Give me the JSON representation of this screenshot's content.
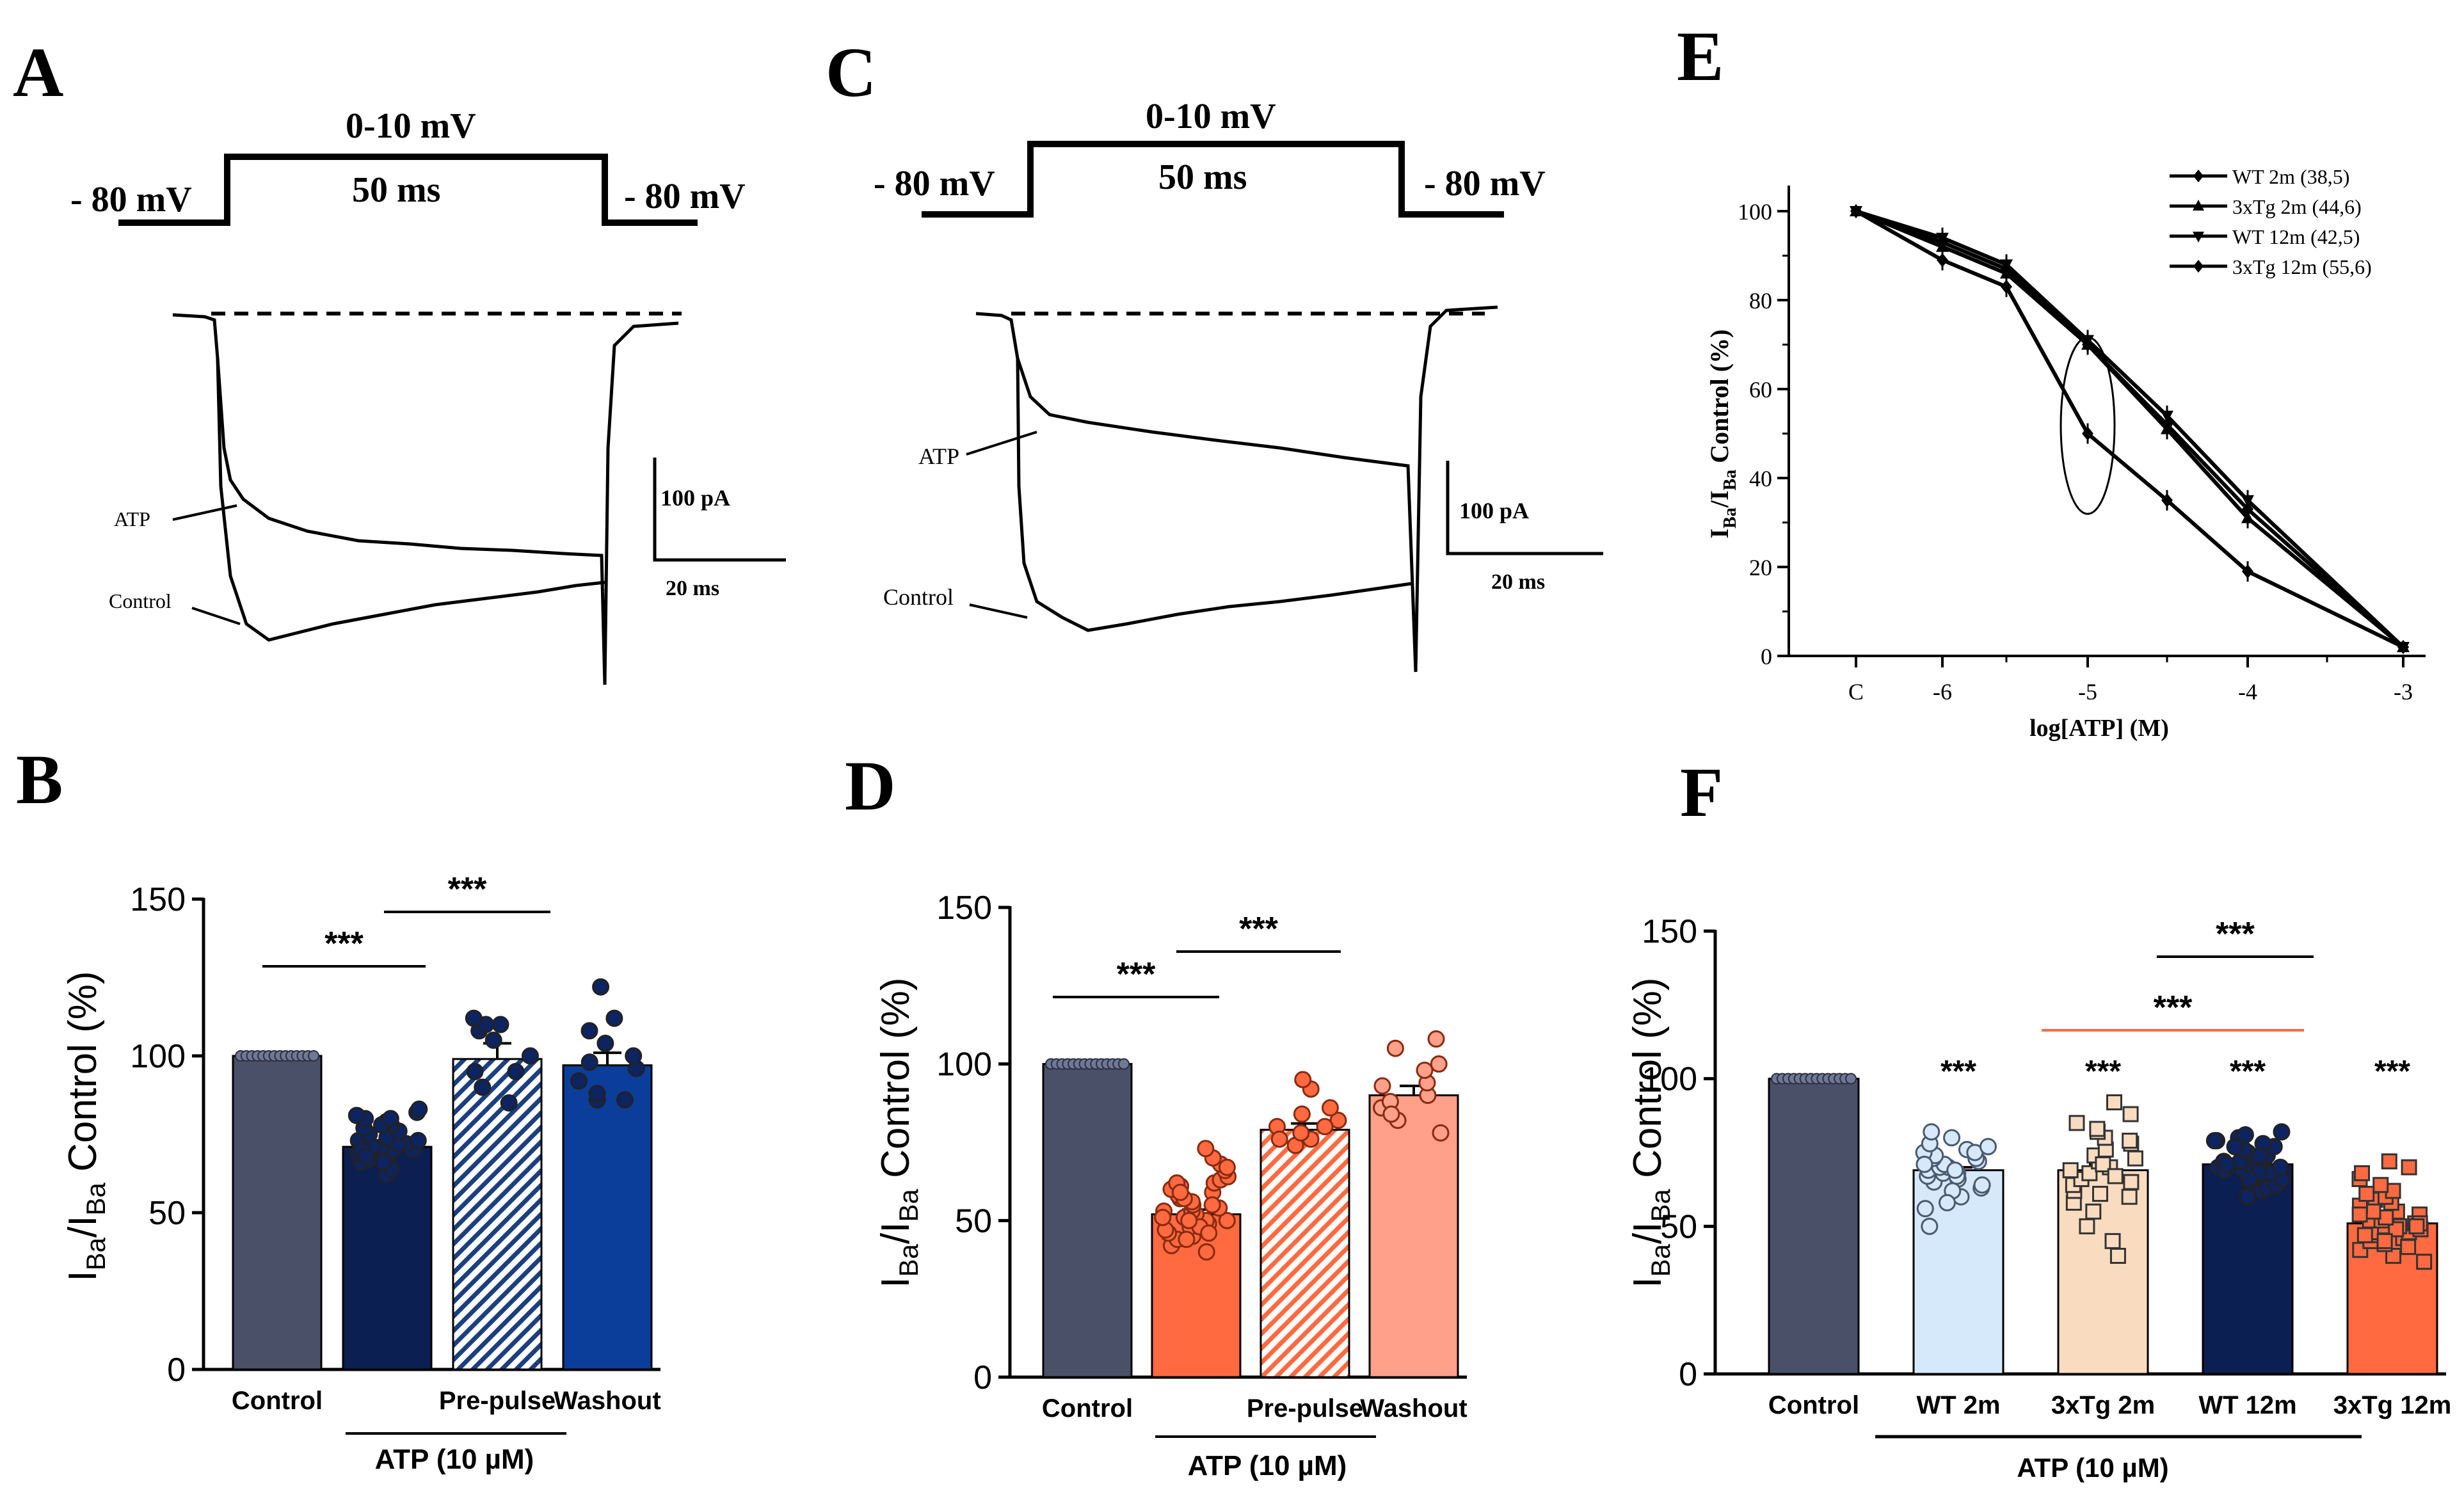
{
  "panels": {
    "A": "A",
    "B": "B",
    "C": "C",
    "D": "D",
    "E": "E",
    "F": "F"
  },
  "colors": {
    "ink": "#000000",
    "control": "#4a5068",
    "b_atp": "#0b1f52",
    "b_pre_fg": "#1b3f80",
    "b_wash": "#0a3e9a",
    "d_atp": "#ff6a40",
    "d_pre": "#ff6a40",
    "d_wash": "#ffa08a",
    "f_wt2": "#d6e9fb",
    "f_tg2": "#f9dcc0",
    "f_wt12": "#0b1f52",
    "f_tg12": "#ff6a40",
    "f_redline": "#ff6a40"
  },
  "protocol": {
    "hold_left": "- 80 mV",
    "step_v": "0-10 mV",
    "duration": "50 ms",
    "hold_right": "- 80 mV"
  },
  "traces": {
    "atp_label": "ATP",
    "control_label": "Control",
    "scale_current": "100 pA",
    "scale_time": "20 ms"
  },
  "chart_data": [
    {
      "panel": "B",
      "type": "bar",
      "title": "",
      "ylabel_main": "I",
      "ylabel_sub1": "Ba",
      "ylabel_sub2": "Ba",
      "ylabel_sep": "/I",
      "ylabel_tail": "Control (%)",
      "ylim": [
        0,
        150
      ],
      "yticks": [
        "0",
        "50",
        "100",
        "150"
      ],
      "categories": [
        "Control",
        "",
        "Pre-pulse",
        "Washout"
      ],
      "values": [
        100,
        71,
        99,
        97
      ],
      "errors": [
        0,
        2,
        5,
        4
      ],
      "group_label": "ATP (10 µM)",
      "significance": [
        "***",
        "***"
      ],
      "points": [
        [],
        [
          62,
          64,
          66,
          67,
          68,
          68,
          69,
          70,
          70,
          71,
          71,
          72,
          72,
          73,
          74,
          75,
          76,
          77,
          78,
          79,
          80,
          81,
          82,
          83,
          70,
          66,
          73,
          68,
          78,
          80
        ],
        [
          85,
          90,
          95,
          100,
          105,
          108,
          110,
          110,
          112,
          95
        ],
        [
          86,
          88,
          92,
          96,
          98,
          100,
          104,
          108,
          112,
          122,
          86
        ]
      ]
    },
    {
      "panel": "D",
      "type": "bar",
      "title": "",
      "ylabel_main": "I",
      "ylabel_sub1": "Ba",
      "ylabel_sub2": "Ba",
      "ylabel_sep": "/I",
      "ylabel_tail": "Control (%)",
      "ylim": [
        0,
        150
      ],
      "yticks": [
        "0",
        "50",
        "100",
        "150"
      ],
      "categories": [
        "Control",
        "",
        "Pre-pulse",
        "Washout"
      ],
      "values": [
        100,
        52,
        79,
        90
      ],
      "errors": [
        0,
        1.5,
        2,
        3
      ],
      "group_label": "ATP (10 µM)",
      "significance": [
        "***",
        "***"
      ],
      "points": [
        [],
        [
          40,
          42,
          44,
          45,
          46,
          47,
          48,
          49,
          50,
          50,
          51,
          52,
          52,
          53,
          54,
          55,
          56,
          57,
          58,
          59,
          60,
          61,
          62,
          63,
          64,
          66,
          68,
          70,
          73,
          48,
          53,
          57,
          44,
          62,
          50,
          46,
          55,
          59,
          67,
          51
        ],
        [
          74,
          76,
          78,
          80,
          82,
          84,
          86,
          92,
          95,
          76,
          80
        ],
        [
          78,
          82,
          86,
          88,
          90,
          94,
          98,
          100,
          105,
          108,
          84,
          93
        ]
      ]
    },
    {
      "panel": "E",
      "type": "line",
      "xlabel": "log[ATP] (M)",
      "ylabel": "I_Ba/I_Ba Control (%)",
      "ylabel_main": "I",
      "ylabel_sub": "Ba",
      "ylabel_sep": "/I",
      "ylabel_tail": " Control (%)",
      "ylim": [
        0,
        100
      ],
      "yticks": [
        "0",
        "20",
        "40",
        "60",
        "80",
        "100"
      ],
      "xticks": [
        "C",
        "-6",
        "-5",
        "-4",
        "-3"
      ],
      "x": [
        "C",
        "-6",
        "-5.5",
        "-5",
        "-4.5",
        "-4",
        "-3"
      ],
      "series": [
        {
          "name": "WT 2m (38,5)",
          "marker": "diamond",
          "values": [
            100,
            93,
            87,
            70,
            52,
            33,
            2
          ]
        },
        {
          "name": "3xTg 2m (44,6)",
          "marker": "triangle-up",
          "values": [
            100,
            92,
            86,
            70,
            51,
            31,
            2
          ]
        },
        {
          "name": "WT 12m (42,5)",
          "marker": "triangle-down",
          "values": [
            100,
            94,
            88,
            71,
            54,
            35,
            2
          ]
        },
        {
          "name": "3xTg 12m (55,6)",
          "marker": "diamond",
          "values": [
            100,
            89,
            83,
            50,
            35,
            19,
            2
          ]
        }
      ]
    },
    {
      "panel": "F",
      "type": "bar",
      "ylabel_main": "I",
      "ylabel_sub1": "Ba",
      "ylabel_sub2": "Ba",
      "ylabel_sep": "/I",
      "ylabel_tail": "Control (%)",
      "ylim": [
        0,
        150
      ],
      "yticks": [
        "0",
        "50",
        "100",
        "150"
      ],
      "categories": [
        "Control",
        "WT 2m",
        "3xTg 2m",
        "WT 12m",
        "3xTg 12m"
      ],
      "values": [
        100,
        69,
        69,
        71,
        51
      ],
      "errors": [
        0,
        1,
        2,
        1,
        1
      ],
      "group_label": "ATP (10 µM)",
      "significance": [
        "***",
        "***",
        "***",
        "***",
        "***",
        "***"
      ],
      "points": [
        [],
        [
          50,
          56,
          60,
          63,
          64,
          65,
          66,
          67,
          68,
          68,
          69,
          70,
          70,
          71,
          72,
          73,
          74,
          75,
          76,
          78,
          80,
          82,
          67,
          62,
          71,
          73,
          69,
          75,
          58,
          77
        ],
        [
          40,
          45,
          50,
          55,
          58,
          60,
          62,
          64,
          66,
          68,
          69,
          70,
          72,
          74,
          76,
          78,
          80,
          82,
          85,
          88,
          92,
          71,
          65,
          67,
          61,
          73,
          79,
          83
        ],
        [
          60,
          62,
          63,
          64,
          65,
          66,
          67,
          68,
          69,
          70,
          70,
          71,
          71,
          72,
          73,
          74,
          75,
          76,
          77,
          78,
          79,
          80,
          81,
          82,
          68,
          72,
          74,
          69,
          71,
          66,
          77,
          79
        ],
        [
          38,
          40,
          42,
          44,
          45,
          46,
          47,
          48,
          48,
          49,
          50,
          50,
          51,
          52,
          52,
          53,
          54,
          55,
          56,
          57,
          58,
          59,
          60,
          62,
          64,
          66,
          68,
          70,
          72,
          49,
          51,
          47,
          53,
          55,
          45,
          57,
          61,
          43,
          50,
          54
        ]
      ]
    }
  ]
}
